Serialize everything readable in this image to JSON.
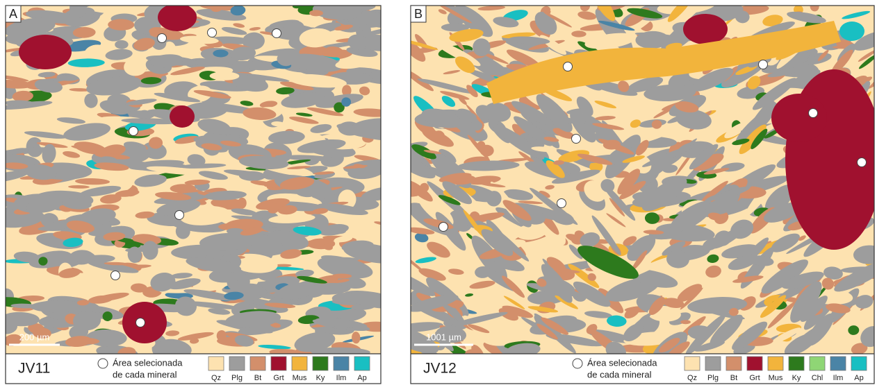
{
  "panels": [
    {
      "label": "A",
      "sample": "JV11",
      "scale_bar": "200 µm",
      "legend_note": [
        "Área selecionada",
        "de cada mineral"
      ],
      "minerals": [
        {
          "name": "Qz",
          "color": "#fde2b0"
        },
        {
          "name": "Plg",
          "color": "#9d9d9d"
        },
        {
          "name": "Bt",
          "color": "#d38f6b"
        },
        {
          "name": "Grt",
          "color": "#a0112f"
        },
        {
          "name": "Mus",
          "color": "#f2b43c"
        },
        {
          "name": "Ky",
          "color": "#2d7a1d"
        },
        {
          "name": "Ilm",
          "color": "#4a84a6"
        },
        {
          "name": "Ap",
          "color": "#19bfc2"
        }
      ]
    },
    {
      "label": "B",
      "sample": "JV12",
      "scale_bar": "1001 µm",
      "legend_note": [
        "Área selecionada",
        "de cada mineral"
      ],
      "minerals": [
        {
          "name": "Qz",
          "color": "#fde2b0"
        },
        {
          "name": "Plg",
          "color": "#9d9d9d"
        },
        {
          "name": "Bt",
          "color": "#d38f6b"
        },
        {
          "name": "Grt",
          "color": "#a0112f"
        },
        {
          "name": "Mus",
          "color": "#f2b43c"
        },
        {
          "name": "Ky",
          "color": "#2d7a1d"
        },
        {
          "name": "Chl",
          "color": "#8fd675"
        },
        {
          "name": "Ilm",
          "color": "#4a84a6"
        },
        {
          "name": "Ap",
          "color": "#19bfc2"
        }
      ]
    }
  ]
}
